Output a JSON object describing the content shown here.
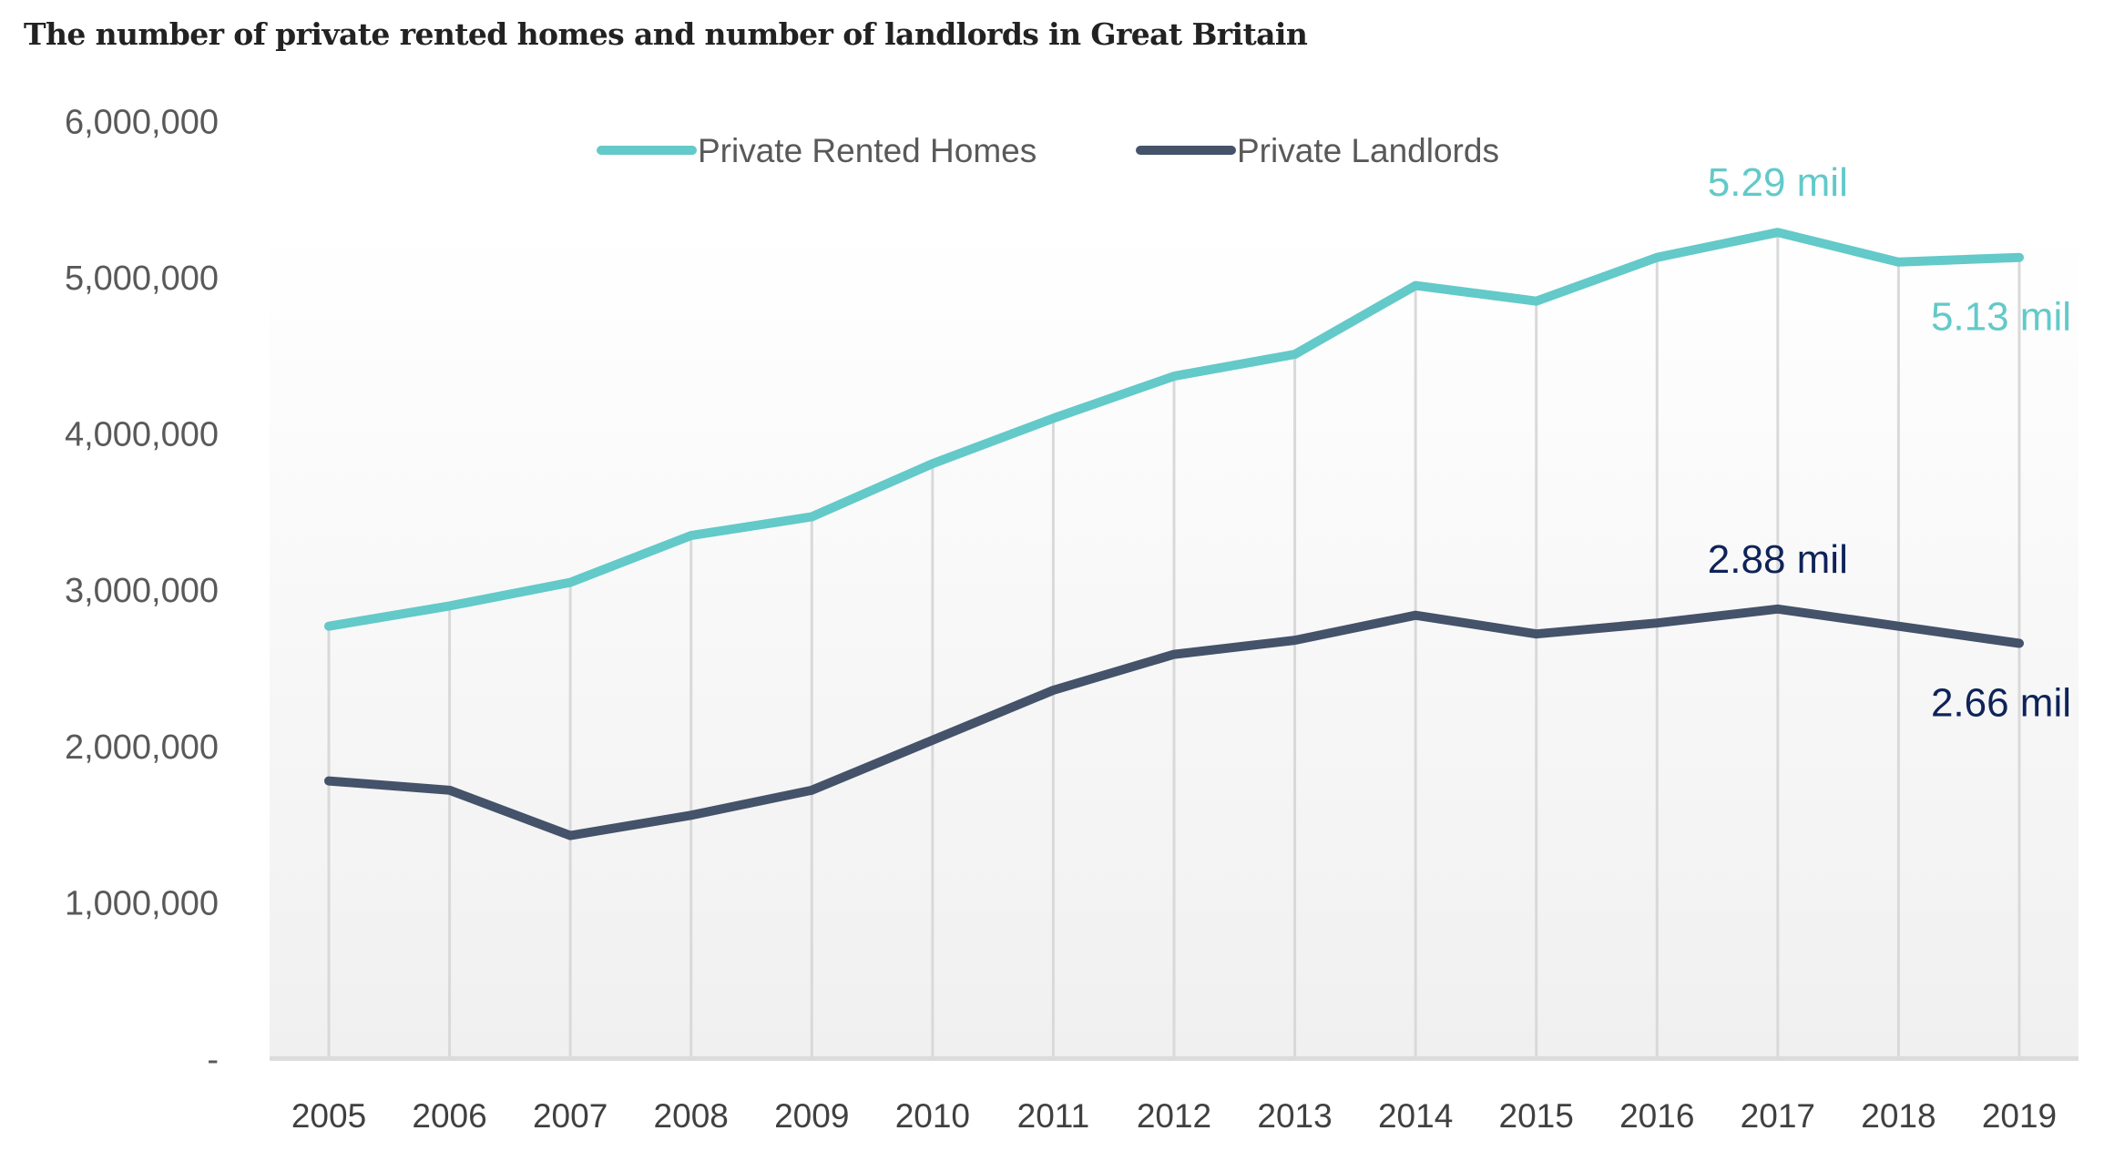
{
  "title": "The number of private rented homes and number of landlords in Great Britain",
  "chart_data": {
    "type": "line",
    "title": "The number of private rented homes and number of landlords in Great Britain",
    "xlabel": "",
    "ylabel": "",
    "x": [
      "2005",
      "2006",
      "2007",
      "2008",
      "2009",
      "2010",
      "2011",
      "2012",
      "2013",
      "2014",
      "2015",
      "2016",
      "2017",
      "2018",
      "2019"
    ],
    "ylim": [
      0,
      6000000
    ],
    "yticks": [
      0,
      1000000,
      2000000,
      3000000,
      4000000,
      5000000,
      6000000
    ],
    "ytick_labels": [
      "-",
      "1,000,000",
      "2,000,000",
      "3,000,000",
      "4,000,000",
      "5,000,000",
      "6,000,000"
    ],
    "grid": "vertical lines at each year",
    "legend_position": "top-center",
    "series": [
      {
        "name": "Private Rented Homes",
        "color": "#63c9c9",
        "values": [
          2770000,
          2900000,
          3050000,
          3350000,
          3470000,
          3810000,
          4100000,
          4370000,
          4510000,
          4950000,
          4850000,
          5130000,
          5290000,
          5100000,
          5130000
        ]
      },
      {
        "name": "Private Landlords",
        "color": "#44526a",
        "values": [
          1780000,
          1720000,
          1430000,
          1560000,
          1720000,
          2040000,
          2360000,
          2590000,
          2680000,
          2840000,
          2720000,
          2790000,
          2880000,
          2770000,
          2660000
        ]
      }
    ],
    "annotations": [
      {
        "text": "5.29 mil",
        "series": "Private Rented Homes",
        "x": "2017",
        "position": "above",
        "color": "#63c9c9"
      },
      {
        "text": "5.13 mil",
        "series": "Private Rented Homes",
        "x": "2019",
        "position": "below",
        "color": "#63c9c9"
      },
      {
        "text": "2.88 mil",
        "series": "Private Landlords",
        "x": "2017",
        "position": "above",
        "color": "#0f2359"
      },
      {
        "text": "2.66 mil",
        "series": "Private Landlords",
        "x": "2019",
        "position": "below",
        "color": "#0f2359"
      }
    ]
  }
}
